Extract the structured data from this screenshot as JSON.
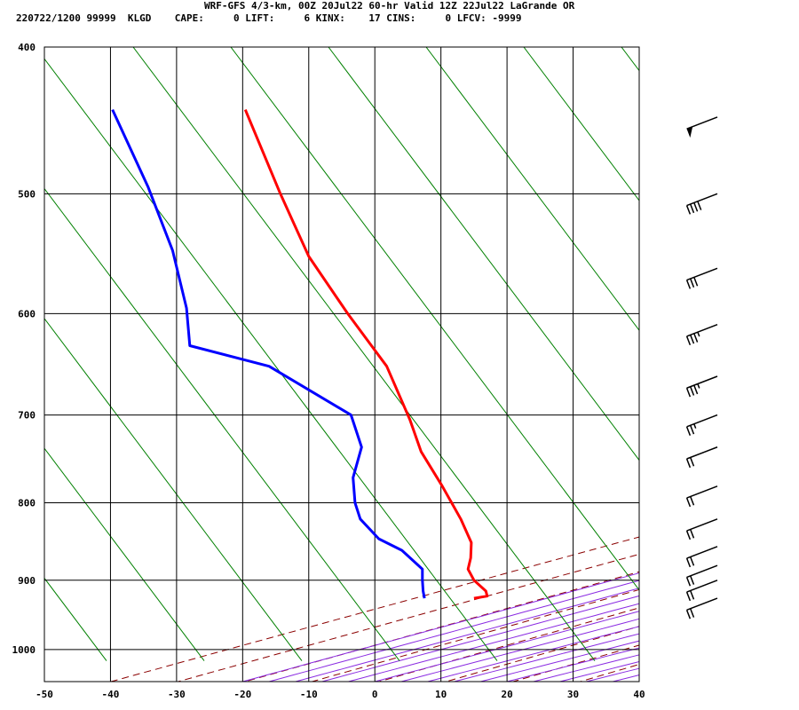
{
  "header": {
    "title": "WRF-GFS 4/3-km, 00Z 20Jul22 60-hr Valid 12Z 22Jul22 LaGrande OR",
    "stats": "220722/1200 99999  KLGD    CAPE:     0 LIFT:     6 KINX:    17 CINS:     0 LFCV: -9999"
  },
  "colors": {
    "temperature": "#ff0000",
    "dewpoint": "#0000ff",
    "dry_adiabat": "#8b0000",
    "moist_adiabat": "#8a2be2",
    "mixing_ratio": "#008000",
    "grid": "#000000",
    "wind_barb": "#000000"
  },
  "chart_data": {
    "type": "line",
    "subtype": "skew-T log-P sounding",
    "title": "WRF-GFS 4/3-km, 00Z 20Jul22 60-hr Valid 12Z 22Jul22 LaGrande OR",
    "xlabel": "",
    "ylabel": "",
    "x_ticks": [
      -50,
      -40,
      -30,
      -20,
      -10,
      0,
      10,
      20,
      30,
      40
    ],
    "y_ticks": [
      400,
      500,
      600,
      700,
      800,
      900,
      1000
    ],
    "xlim": [
      -50,
      40
    ],
    "ylim": [
      1050,
      400
    ],
    "y_scale": "log",
    "grid": true,
    "background_lines": [
      "dry adiabats",
      "moist adiabats",
      "mixing ratio lines"
    ],
    "series": [
      {
        "name": "",
        "role": "temperature",
        "color": "#ff0000",
        "points": [
          {
            "p": 925,
            "t": 15.0
          },
          {
            "p": 922,
            "t": 17.0
          },
          {
            "p": 915,
            "t": 16.8
          },
          {
            "p": 900,
            "t": 15.0
          },
          {
            "p": 885,
            "t": 14.1
          },
          {
            "p": 870,
            "t": 14.5
          },
          {
            "p": 850,
            "t": 14.6
          },
          {
            "p": 820,
            "t": 13.0
          },
          {
            "p": 780,
            "t": 10.2
          },
          {
            "p": 740,
            "t": 7.0
          },
          {
            "p": 705,
            "t": 5.3
          },
          {
            "p": 650,
            "t": 1.8
          },
          {
            "p": 600,
            "t": -4.1
          },
          {
            "p": 550,
            "t": -10.0
          },
          {
            "p": 500,
            "t": -14.3
          },
          {
            "p": 440,
            "t": -19.6
          }
        ]
      },
      {
        "name": "",
        "role": "dewpoint",
        "color": "#0000ff",
        "points": [
          {
            "p": 925,
            "t": 7.5
          },
          {
            "p": 915,
            "t": 7.3
          },
          {
            "p": 900,
            "t": 7.2
          },
          {
            "p": 885,
            "t": 7.2
          },
          {
            "p": 860,
            "t": 4.1
          },
          {
            "p": 845,
            "t": 0.6
          },
          {
            "p": 820,
            "t": -2.2
          },
          {
            "p": 800,
            "t": -3.0
          },
          {
            "p": 770,
            "t": -3.3
          },
          {
            "p": 735,
            "t": -2.0
          },
          {
            "p": 700,
            "t": -3.6
          },
          {
            "p": 650,
            "t": -16.0
          },
          {
            "p": 630,
            "t": -28.0
          },
          {
            "p": 595,
            "t": -28.5
          },
          {
            "p": 545,
            "t": -30.6
          },
          {
            "p": 495,
            "t": -34.3
          },
          {
            "p": 440,
            "t": -39.7
          }
        ]
      }
    ],
    "wind_barbs": [
      {
        "p": 445,
        "speed_kt": 50
      },
      {
        "p": 500,
        "speed_kt": 40
      },
      {
        "p": 560,
        "speed_kt": 30
      },
      {
        "p": 610,
        "speed_kt": 35
      },
      {
        "p": 660,
        "speed_kt": 35
      },
      {
        "p": 700,
        "speed_kt": 25
      },
      {
        "p": 735,
        "speed_kt": 20
      },
      {
        "p": 780,
        "speed_kt": 20
      },
      {
        "p": 820,
        "speed_kt": 20
      },
      {
        "p": 855,
        "speed_kt": 20
      },
      {
        "p": 880,
        "speed_kt": 20
      },
      {
        "p": 900,
        "speed_kt": 20
      },
      {
        "p": 925,
        "speed_kt": 20
      }
    ]
  }
}
